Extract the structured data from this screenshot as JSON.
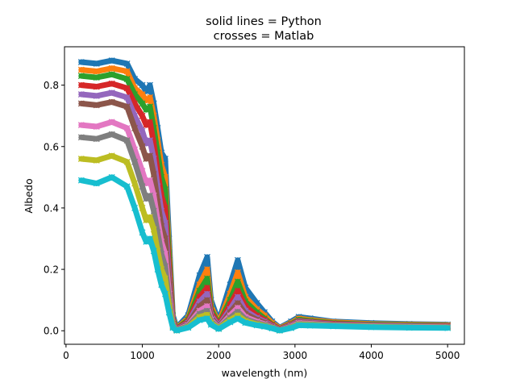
{
  "chart_data": {
    "type": "line",
    "title_lines": [
      "solid lines = Python",
      "crosses = Matlab"
    ],
    "xlabel": "wavelength (nm)",
    "ylabel": "Albedo",
    "xlim": [
      -20,
      5220
    ],
    "ylim": [
      -0.044,
      0.925
    ],
    "x_ticks": [
      0,
      1000,
      2000,
      3000,
      4000,
      5000
    ],
    "y_ticks": [
      0.0,
      0.2,
      0.4,
      0.6,
      0.8
    ],
    "x_tick_labels": [
      "0",
      "1000",
      "2000",
      "3000",
      "4000",
      "5000"
    ],
    "y_tick_labels": [
      "0.0",
      "0.2",
      "0.4",
      "0.6",
      "0.8"
    ],
    "grid": false,
    "legend": "none",
    "x": [
      200,
      400,
      600,
      800,
      900,
      1000,
      1050,
      1100,
      1150,
      1200,
      1250,
      1300,
      1350,
      1400,
      1450,
      1600,
      1750,
      1850,
      1900,
      2000,
      2150,
      2250,
      2350,
      2500,
      2600,
      2700,
      2800,
      2950,
      3050,
      3200,
      3500,
      4000,
      4500,
      5000
    ],
    "series": [
      {
        "values": [
          0.875,
          0.87,
          0.88,
          0.87,
          0.82,
          0.8,
          0.78,
          0.8,
          0.74,
          0.66,
          0.58,
          0.56,
          0.3,
          0.05,
          0.01,
          0.05,
          0.18,
          0.24,
          0.1,
          0.03,
          0.15,
          0.23,
          0.14,
          0.09,
          0.06,
          0.03,
          0.01,
          0.03,
          0.045,
          0.04,
          0.03,
          0.025,
          0.022,
          0.02
        ]
      },
      {
        "values": [
          0.85,
          0.845,
          0.855,
          0.845,
          0.79,
          0.77,
          0.75,
          0.76,
          0.7,
          0.62,
          0.54,
          0.5,
          0.26,
          0.04,
          0.008,
          0.04,
          0.15,
          0.2,
          0.08,
          0.025,
          0.12,
          0.19,
          0.11,
          0.07,
          0.05,
          0.025,
          0.008,
          0.025,
          0.04,
          0.035,
          0.028,
          0.022,
          0.02,
          0.018
        ]
      },
      {
        "values": [
          0.83,
          0.825,
          0.835,
          0.82,
          0.77,
          0.74,
          0.72,
          0.73,
          0.66,
          0.58,
          0.5,
          0.46,
          0.23,
          0.035,
          0.006,
          0.035,
          0.13,
          0.17,
          0.07,
          0.02,
          0.1,
          0.16,
          0.095,
          0.06,
          0.04,
          0.02,
          0.006,
          0.022,
          0.036,
          0.032,
          0.025,
          0.02,
          0.018,
          0.016
        ]
      },
      {
        "values": [
          0.8,
          0.795,
          0.805,
          0.79,
          0.74,
          0.7,
          0.67,
          0.68,
          0.61,
          0.52,
          0.44,
          0.4,
          0.2,
          0.03,
          0.005,
          0.03,
          0.11,
          0.14,
          0.06,
          0.018,
          0.085,
          0.13,
          0.08,
          0.05,
          0.035,
          0.018,
          0.005,
          0.02,
          0.032,
          0.029,
          0.023,
          0.018,
          0.016,
          0.015
        ]
      },
      {
        "values": [
          0.77,
          0.765,
          0.775,
          0.76,
          0.7,
          0.65,
          0.61,
          0.62,
          0.56,
          0.47,
          0.39,
          0.35,
          0.17,
          0.025,
          0.004,
          0.025,
          0.095,
          0.12,
          0.05,
          0.015,
          0.07,
          0.11,
          0.065,
          0.042,
          0.03,
          0.015,
          0.004,
          0.018,
          0.03,
          0.027,
          0.021,
          0.017,
          0.015,
          0.014
        ]
      },
      {
        "values": [
          0.74,
          0.735,
          0.745,
          0.73,
          0.66,
          0.6,
          0.56,
          0.57,
          0.51,
          0.42,
          0.34,
          0.3,
          0.15,
          0.022,
          0.003,
          0.022,
          0.08,
          0.1,
          0.042,
          0.012,
          0.06,
          0.09,
          0.055,
          0.036,
          0.026,
          0.013,
          0.003,
          0.016,
          0.028,
          0.025,
          0.02,
          0.016,
          0.014,
          0.013
        ]
      },
      {
        "values": [
          0.67,
          0.665,
          0.68,
          0.66,
          0.59,
          0.52,
          0.48,
          0.49,
          0.44,
          0.36,
          0.29,
          0.25,
          0.12,
          0.018,
          0.002,
          0.018,
          0.065,
          0.08,
          0.035,
          0.01,
          0.05,
          0.075,
          0.045,
          0.03,
          0.022,
          0.011,
          0.002,
          0.014,
          0.025,
          0.023,
          0.018,
          0.015,
          0.013,
          0.012
        ]
      },
      {
        "values": [
          0.63,
          0.625,
          0.64,
          0.62,
          0.55,
          0.47,
          0.43,
          0.44,
          0.39,
          0.32,
          0.25,
          0.21,
          0.1,
          0.015,
          0.002,
          0.015,
          0.055,
          0.065,
          0.03,
          0.009,
          0.042,
          0.062,
          0.038,
          0.025,
          0.019,
          0.01,
          0.002,
          0.012,
          0.022,
          0.021,
          0.017,
          0.014,
          0.012,
          0.011
        ]
      },
      {
        "values": [
          0.56,
          0.555,
          0.57,
          0.55,
          0.48,
          0.4,
          0.36,
          0.37,
          0.33,
          0.26,
          0.2,
          0.17,
          0.08,
          0.012,
          0.001,
          0.012,
          0.045,
          0.052,
          0.025,
          0.008,
          0.035,
          0.05,
          0.032,
          0.021,
          0.016,
          0.009,
          0.001,
          0.01,
          0.02,
          0.019,
          0.016,
          0.013,
          0.011,
          0.01
        ]
      },
      {
        "values": [
          0.49,
          0.48,
          0.5,
          0.47,
          0.4,
          0.32,
          0.29,
          0.3,
          0.26,
          0.2,
          0.15,
          0.12,
          0.06,
          0.01,
          0.001,
          0.01,
          0.035,
          0.04,
          0.02,
          0.006,
          0.028,
          0.04,
          0.026,
          0.018,
          0.014,
          0.008,
          0.001,
          0.009,
          0.018,
          0.017,
          0.015,
          0.012,
          0.01,
          0.009
        ]
      }
    ]
  }
}
